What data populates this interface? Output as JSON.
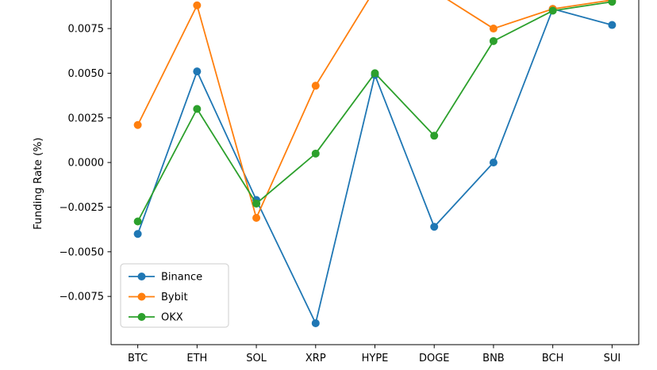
{
  "chart_data": {
    "type": "line",
    "title": "",
    "xlabel": "",
    "ylabel": "Funding Rate (%)",
    "categories": [
      "BTC",
      "ETH",
      "SOL",
      "XRP",
      "HYPE",
      "DOGE",
      "BNB",
      "BCH",
      "SUI"
    ],
    "series": [
      {
        "name": "Binance",
        "color": "#1f77b4",
        "values": [
          -0.004,
          0.0051,
          -0.0021,
          -0.009,
          0.0049,
          -0.0036,
          0.0,
          0.0086,
          0.0077
        ]
      },
      {
        "name": "Bybit",
        "color": "#ff7f0e",
        "values": [
          0.0021,
          0.0088,
          -0.0031,
          0.0043,
          0.0097,
          0.0096,
          0.0075,
          0.0086,
          0.0091
        ]
      },
      {
        "name": "OKX",
        "color": "#2ca02c",
        "values": [
          -0.0033,
          0.003,
          -0.0023,
          0.0005,
          0.005,
          0.0015,
          0.0068,
          0.0085,
          0.009
        ]
      }
    ],
    "ylim": [
      -0.0102,
      0.0091
    ],
    "yticks": [
      {
        "value": 0.0075,
        "label": "0.0075"
      },
      {
        "value": 0.005,
        "label": "0.0050"
      },
      {
        "value": 0.0025,
        "label": "0.0025"
      },
      {
        "value": 0.0,
        "label": "0.0000"
      },
      {
        "value": -0.0025,
        "label": "−0.0025"
      },
      {
        "value": -0.005,
        "label": "−0.0050"
      },
      {
        "value": -0.0075,
        "label": "−0.0075"
      }
    ],
    "legend": {
      "position": "lower left",
      "entries": [
        "Binance",
        "Bybit",
        "OKX"
      ]
    },
    "grid": false,
    "axis_color": "#000000",
    "legend_border_color": "#cccccc",
    "marker": "circle",
    "marker_radius": 5,
    "line_width": 1.8
  }
}
